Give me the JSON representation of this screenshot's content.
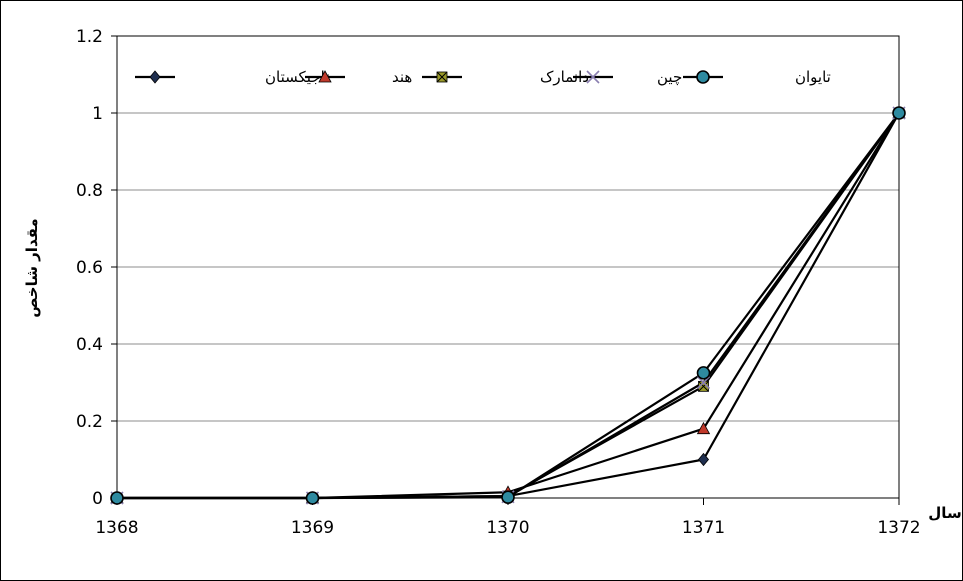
{
  "chart_data": {
    "type": "line",
    "title": "",
    "xlabel": "سال",
    "ylabel": "مقدار شاخص",
    "x": [
      "1368",
      "1369",
      "1370",
      "1371",
      "1372"
    ],
    "ylim": [
      0,
      1.2
    ],
    "yticks": [
      "0",
      "0.2",
      "0.4",
      "0.6",
      "0.8",
      "1",
      "1.2"
    ],
    "grid": "horizontal",
    "legend_position": "top",
    "series": [
      {
        "name": "تاجیکستان",
        "marker": "diamond",
        "color": "#1f2f4f",
        "values": [
          0,
          0,
          0.005,
          0.1,
          1
        ]
      },
      {
        "name": "هند",
        "marker": "triangle",
        "color": "#c0392b",
        "values": [
          0,
          0,
          0.015,
          0.18,
          1
        ]
      },
      {
        "name": "دانمارک",
        "marker": "square",
        "color": "#9a9a2a",
        "values": [
          0,
          0,
          0.005,
          0.29,
          1
        ]
      },
      {
        "name": "چین",
        "marker": "x",
        "color": "#8a7fb0",
        "values": [
          0,
          0,
          0.003,
          0.3,
          1
        ]
      },
      {
        "name": "تایوان",
        "marker": "circle",
        "color": "#2e8aa0",
        "values": [
          0,
          0,
          0.002,
          0.325,
          1
        ]
      }
    ]
  }
}
